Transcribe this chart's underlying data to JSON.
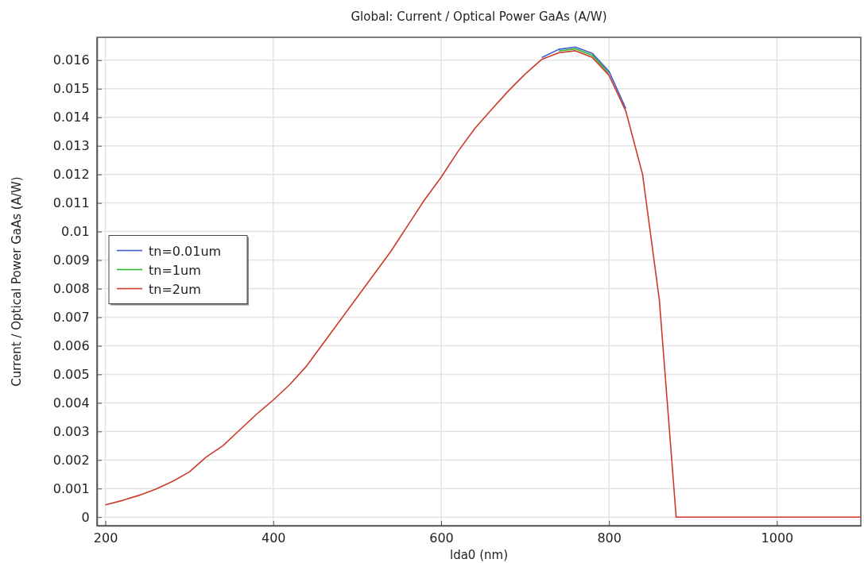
{
  "chart_data": {
    "type": "line",
    "title": "Global: Current / Optical Power GaAs (A/W)",
    "xlabel": "lda0 (nm)",
    "ylabel": "Current / Optical Power GaAs (A/W)",
    "x": [
      200,
      220,
      240,
      260,
      280,
      300,
      320,
      340,
      360,
      380,
      400,
      420,
      440,
      460,
      480,
      500,
      520,
      540,
      560,
      580,
      600,
      620,
      640,
      660,
      680,
      700,
      720,
      740,
      760,
      780,
      800,
      820,
      840,
      860,
      880,
      1100
    ],
    "xlim": [
      190,
      1100
    ],
    "xticks": [
      200,
      400,
      600,
      800,
      1000
    ],
    "ylim": [
      -0.0003,
      0.0168
    ],
    "yticks": [
      0,
      0.001,
      0.002,
      0.003,
      0.004,
      0.005,
      0.006,
      0.007,
      0.008,
      0.009,
      0.01,
      0.011,
      0.012,
      0.013,
      0.014,
      0.015,
      0.016
    ],
    "grid": true,
    "legend": "left",
    "line_style": "solid",
    "marker": "none",
    "series": [
      {
        "name": "tn=0.01um",
        "color": "#3a5fcd",
        "values": [
          null,
          null,
          null,
          null,
          null,
          null,
          null,
          null,
          null,
          null,
          null,
          null,
          null,
          null,
          null,
          null,
          null,
          null,
          null,
          null,
          null,
          null,
          null,
          null,
          null,
          null,
          0.01609,
          0.01638,
          0.01646,
          0.01624,
          0.01561,
          0.01431,
          null,
          null,
          null,
          null
        ]
      },
      {
        "name": "tn=1um",
        "color": "#2cb52c",
        "values": [
          null,
          null,
          null,
          null,
          null,
          null,
          null,
          null,
          null,
          null,
          null,
          null,
          null,
          null,
          null,
          null,
          null,
          null,
          null,
          null,
          null,
          null,
          null,
          null,
          null,
          null,
          null,
          0.01632,
          0.0164,
          0.01617,
          0.01554,
          null,
          null,
          null,
          null,
          null
        ]
      },
      {
        "name": "tn=2um",
        "color": "#cc3a2a",
        "values": [
          0.00043,
          0.00058,
          0.00076,
          0.00098,
          0.00125,
          0.00158,
          0.0021,
          0.0025,
          0.00305,
          0.0036,
          0.0041,
          0.00465,
          0.0053,
          0.0061,
          0.0069,
          0.0077,
          0.0085,
          0.0093,
          0.0102,
          0.0111,
          0.0119,
          0.0128,
          0.0136,
          0.01427,
          0.01492,
          0.01551,
          0.01603,
          0.01626,
          0.01633,
          0.0161,
          0.01547,
          0.01422,
          0.012,
          0.0076,
          0,
          0
        ]
      }
    ]
  }
}
